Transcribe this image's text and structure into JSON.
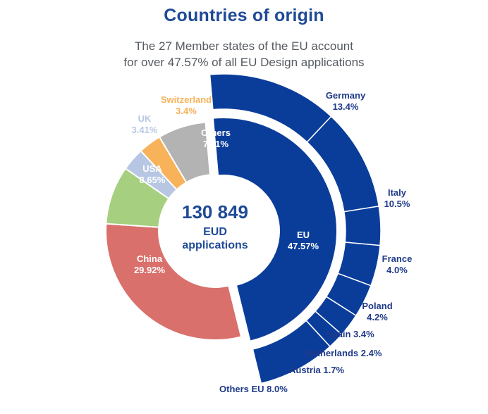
{
  "title": "Countries of origin",
  "subtitle_lines": [
    "The 27 Member states of the EU account",
    "for over 47.57% of all EU Design applications"
  ],
  "colors": {
    "title": "#1f4a96",
    "eu_blue": "#0a3d9a",
    "china": "#d9706c",
    "usa": "#a6cf7f",
    "uk": "#b7c7e3",
    "switzerland": "#f7b25a",
    "others": "#b3b3b3",
    "dark_label": "#1f3a8a",
    "white": "#ffffff"
  },
  "center": {
    "number": "130 849",
    "line1": "EUD",
    "line2": "applications"
  },
  "chart_data": {
    "type": "pie",
    "title": "Countries of origin",
    "total": "130 849",
    "inner_ring": {
      "slices": [
        {
          "name": "EU",
          "value": 47.57,
          "value_label": "47.57%",
          "color": "#0a3d9a",
          "label_placement": "inside"
        },
        {
          "name": "China",
          "value": 29.92,
          "value_label": "29.92%",
          "color": "#d9706c",
          "label_placement": "inside"
        },
        {
          "name": "USA",
          "value": 8.65,
          "value_label": "8.65%",
          "color": "#a6cf7f",
          "label_placement": "inside"
        },
        {
          "name": "UK",
          "value": 3.41,
          "value_label": "3.41%",
          "color": "#b7c7e3",
          "label_placement": "outside"
        },
        {
          "name": "Switzerland",
          "value": 3.4,
          "value_label": "3.4%",
          "color": "#f7b25a",
          "label_placement": "outside"
        },
        {
          "name": "Others",
          "value": 7.11,
          "value_label": "7.11%",
          "color": "#b3b3b3",
          "label_placement": "inside"
        }
      ]
    },
    "outer_ring": {
      "parent": "EU",
      "slices": [
        {
          "name": "Germany",
          "value": 13.4,
          "value_label": "13.4%",
          "label": "Germany\n13.4%"
        },
        {
          "name": "Italy",
          "value": 10.5,
          "value_label": "10.5%",
          "label": "Italy\n10.5%"
        },
        {
          "name": "France",
          "value": 4.0,
          "value_label": "4.0%",
          "label": "France\n4.0%"
        },
        {
          "name": "Poland",
          "value": 4.2,
          "value_label": "4.2%",
          "label": "Poland\n4.2%"
        },
        {
          "name": "Spain",
          "value": 3.4,
          "value_label": "3.4%",
          "label": "Spain 3.4%"
        },
        {
          "name": "Netherlands",
          "value": 2.4,
          "value_label": "2.4%",
          "label": "Netherlands 2.4%"
        },
        {
          "name": "Austria",
          "value": 1.7,
          "value_label": "1.7%",
          "label": "Austria 1.7%"
        },
        {
          "name": "Others EU",
          "value": 8.0,
          "value_label": "8.0%",
          "label": "Others EU  8.0%"
        }
      ]
    }
  }
}
